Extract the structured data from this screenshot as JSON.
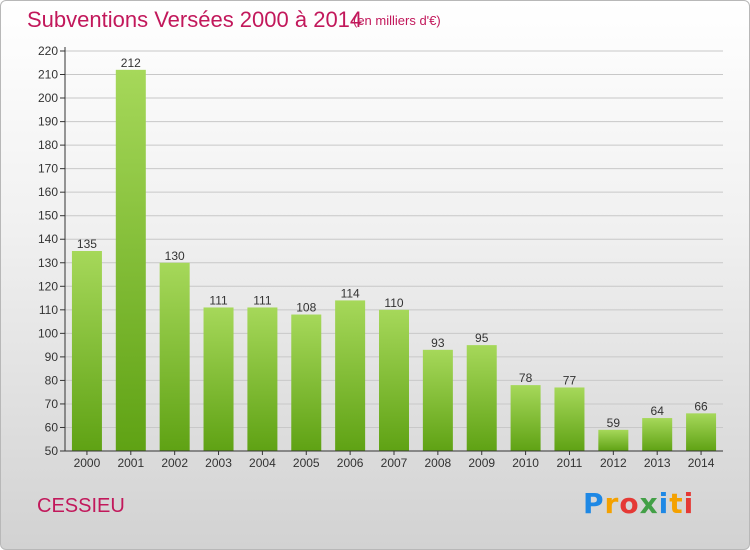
{
  "header": {
    "title": "Subventions Versées 2000 à 2014",
    "unit_note": "(en milliers d'€)"
  },
  "footer": {
    "place": "CESSIEU",
    "logo_text": "Proxiti",
    "logo_colors": [
      "#1e88e5",
      "#f4a100",
      "#e53935",
      "#43a047",
      "#1e88e5",
      "#f4a100",
      "#e53935"
    ]
  },
  "colors": {
    "title": "#c2185b",
    "bar_light": "#a6d85a",
    "bar_dark": "#5fa214",
    "axis": "#333333",
    "grid": "#c8c8c8"
  },
  "chart_data": {
    "type": "bar",
    "title": "Subventions Versées 2000 à 2014",
    "subtitle": "(en milliers d'€)",
    "categories": [
      "2000",
      "2001",
      "2002",
      "2003",
      "2004",
      "2005",
      "2006",
      "2007",
      "2008",
      "2009",
      "2010",
      "2011",
      "2012",
      "2013",
      "2014"
    ],
    "values": [
      135,
      212,
      130,
      111,
      111,
      108,
      114,
      110,
      93,
      95,
      78,
      77,
      59,
      64,
      66
    ],
    "ylim": [
      50,
      220
    ],
    "yticks": [
      50,
      60,
      70,
      80,
      90,
      100,
      110,
      120,
      130,
      140,
      150,
      160,
      170,
      180,
      190,
      200,
      210,
      220
    ],
    "grid": true,
    "data_labels": true
  }
}
